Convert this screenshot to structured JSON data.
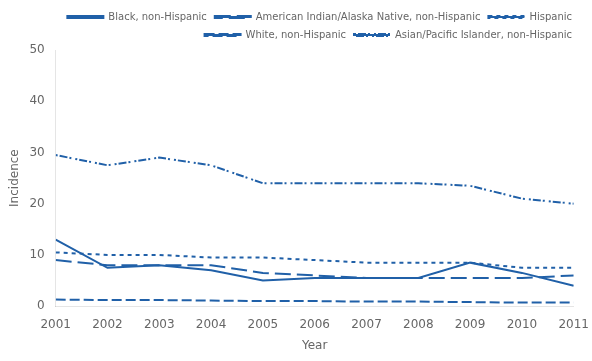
{
  "chart_data": {
    "type": "line",
    "x": [
      2001,
      2002,
      2003,
      2004,
      2005,
      2006,
      2007,
      2008,
      2009,
      2010,
      2011
    ],
    "series": [
      {
        "name": "Black, non-Hispanic",
        "color": "#2060a8",
        "line_style": "solid",
        "values": [
          13.0,
          7.5,
          8.0,
          7.0,
          5.0,
          5.5,
          5.5,
          5.5,
          8.5,
          6.5,
          4.0
        ]
      },
      {
        "name": "American Indian/Alaska Native, non-Hispanic",
        "color": "#2060a8",
        "line_style": "long_dash",
        "values": [
          9.0,
          8.0,
          8.0,
          8.0,
          6.5,
          6.0,
          5.5,
          5.5,
          5.5,
          5.5,
          6.0
        ]
      },
      {
        "name": "Hispanic",
        "color": "#2060a8",
        "line_style": "dotted",
        "values": [
          10.5,
          10.0,
          10.0,
          9.5,
          9.5,
          9.0,
          8.5,
          8.5,
          8.5,
          7.5,
          7.5
        ]
      },
      {
        "name": "White, non-Hispanic",
        "color": "#2060a8",
        "line_style": "dashed",
        "values": [
          1.3,
          1.2,
          1.2,
          1.1,
          1.0,
          1.0,
          0.9,
          0.9,
          0.8,
          0.7,
          0.7
        ]
      },
      {
        "name": "Asian/Pacific Islander, non-Hispanic",
        "color": "#2060a8",
        "line_style": "dash_dot",
        "values": [
          29.5,
          27.5,
          29.0,
          27.5,
          24.0,
          24.0,
          24.0,
          24.0,
          23.5,
          21.0,
          20.0
        ]
      }
    ],
    "xlabel": "Year",
    "ylabel": "Incidence",
    "xlim": [
      2001,
      2011
    ],
    "xticks": [
      2001,
      2002,
      2003,
      2004,
      2005,
      2006,
      2007,
      2008,
      2009,
      2010,
      2011
    ],
    "ylim": [
      0,
      50
    ],
    "yticks": [
      0,
      10,
      20,
      30,
      40,
      50
    ],
    "grid": false,
    "legend": "upper right"
  }
}
